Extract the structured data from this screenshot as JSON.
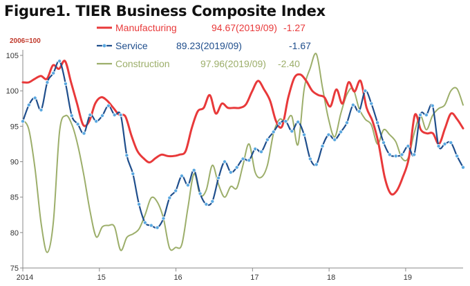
{
  "colors": {
    "manufacturing": "#e8393a",
    "service": "#1f4e8c",
    "service_marker": "#5aa8e0",
    "construction": "#9cae6a",
    "axis": "#888888"
  },
  "chart_data": {
    "type": "line",
    "title": "Figure1. TIER Business Composite Index",
    "base_note": "2006=100",
    "ylim": [
      75,
      105
    ],
    "yticks": [
      75,
      80,
      85,
      90,
      95,
      100,
      105
    ],
    "x_range": [
      2014.0,
      2019.75
    ],
    "xticks": [
      {
        "x": 2014.0,
        "label": "2014"
      },
      {
        "x": 2015.0,
        "label": "15"
      },
      {
        "x": 2016.0,
        "label": "16"
      },
      {
        "x": 2017.0,
        "label": "17"
      },
      {
        "x": 2018.0,
        "label": "18"
      },
      {
        "x": 2019.0,
        "label": "19"
      }
    ],
    "grid": false,
    "legend_position": "top",
    "series": [
      {
        "key": "manufacturing",
        "name": "Manufacturing",
        "legend_value": "94.67(2019/09)",
        "legend_change": "-1.27",
        "markers": false,
        "values": [
          101.2,
          101.2,
          101.7,
          102.1,
          101.7,
          103.6,
          103.1,
          104.2,
          101.2,
          98.2,
          95.2,
          95.7,
          98.2,
          99.1,
          98.6,
          97.6,
          96.6,
          96.4,
          93.7,
          91.5,
          90.5,
          89.9,
          90.5,
          91.0,
          90.8,
          90.8,
          91.0,
          91.5,
          94.7,
          97.1,
          97.6,
          99.4,
          96.8,
          98.2,
          97.6,
          97.6,
          97.6,
          98.1,
          99.9,
          101.4,
          100.2,
          98.6,
          95.7,
          95.0,
          99.0,
          101.8,
          102.3,
          101.4,
          100.0,
          99.4,
          99.1,
          97.8,
          100.2,
          98.2,
          101.2,
          99.9,
          101.4,
          97.6,
          95.7,
          92.5,
          87.8,
          85.5,
          85.9,
          87.8,
          90.5,
          96.6,
          94.5,
          94.0,
          94.0,
          92.5,
          94.7,
          96.8,
          96.0,
          94.7
        ]
      },
      {
        "key": "service",
        "name": "Service",
        "legend_value": "89.23(2019/09)",
        "legend_change": "-1.67",
        "markers": true,
        "values": [
          95.7,
          98.0,
          99.0,
          97.3,
          101.2,
          102.5,
          104.2,
          101.0,
          96.5,
          95.3,
          94.0,
          96.6,
          95.7,
          96.5,
          97.9,
          96.6,
          96.6,
          90.9,
          88.3,
          84.0,
          81.4,
          81.0,
          80.7,
          82.0,
          84.9,
          85.9,
          88.0,
          86.7,
          88.8,
          85.5,
          84.0,
          84.4,
          87.7,
          90.0,
          88.5,
          89.2,
          90.4,
          90.2,
          91.8,
          91.4,
          93.1,
          94.2,
          95.4,
          95.7,
          94.3,
          95.6,
          93.8,
          90.4,
          89.6,
          92.2,
          93.8,
          93.1,
          94.2,
          95.5,
          98.0,
          97.1,
          100.0,
          98.2,
          95.5,
          92.7,
          91.0,
          90.8,
          91.0,
          92.2,
          91.0,
          96.6,
          96.6,
          97.9,
          92.2,
          92.5,
          92.7,
          90.8,
          89.2
        ]
      },
      {
        "key": "construction",
        "name": "Construction",
        "legend_value": "97.96(2019/09)",
        "legend_change": "-2.40",
        "markers": false,
        "values": [
          95.9,
          94.5,
          89.0,
          81.3,
          77.2,
          81.5,
          94.2,
          96.5,
          95.3,
          92.3,
          88.0,
          83.0,
          79.4,
          80.8,
          81.0,
          80.8,
          77.5,
          79.3,
          79.8,
          80.5,
          82.5,
          84.9,
          84.3,
          82.0,
          77.8,
          77.9,
          78.3,
          83.5,
          88.3,
          85.3,
          86.0,
          89.5,
          86.8,
          85.0,
          86.5,
          86.3,
          89.5,
          92.5,
          88.5,
          87.8,
          89.5,
          94.0,
          96.0,
          95.5,
          96.4,
          92.4,
          100.2,
          103.2,
          105.2,
          100.5,
          96.0,
          93.5,
          96.8,
          99.5,
          100.3,
          97.5,
          96.0,
          95.2,
          92.5,
          94.5,
          93.8,
          92.8,
          90.5,
          90.5,
          94.0,
          96.5,
          94.5,
          96.5,
          97.5,
          98.0,
          100.0,
          100.3,
          98.0
        ]
      }
    ]
  }
}
